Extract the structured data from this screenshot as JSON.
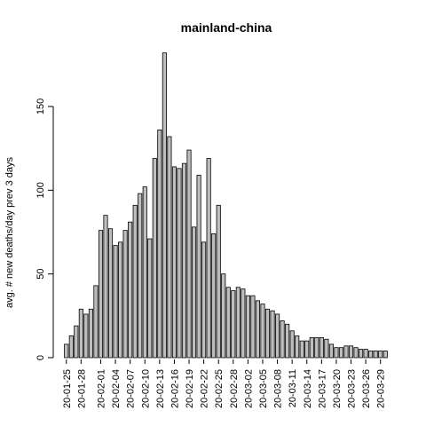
{
  "chart_data": {
    "type": "bar",
    "title": "mainland-china",
    "ylabel": "avg. # new deaths/day prev  3  days",
    "xlabel": "",
    "ylim": [
      0,
      185
    ],
    "yticks": [
      0,
      50,
      100,
      150
    ],
    "bar_color": "#bebebe",
    "bar_stroke": "#000000",
    "grid": false,
    "categories": [
      "20-01-25",
      "20-01-26",
      "20-01-27",
      "20-01-28",
      "20-01-29",
      "20-01-30",
      "20-01-31",
      "20-02-01",
      "20-02-02",
      "20-02-03",
      "20-02-04",
      "20-02-05",
      "20-02-06",
      "20-02-07",
      "20-02-08",
      "20-02-09",
      "20-02-10",
      "20-02-11",
      "20-02-12",
      "20-02-13",
      "20-02-14",
      "20-02-15",
      "20-02-16",
      "20-02-17",
      "20-02-18",
      "20-02-19",
      "20-02-20",
      "20-02-21",
      "20-02-22",
      "20-02-23",
      "20-02-24",
      "20-02-25",
      "20-02-26",
      "20-02-27",
      "20-02-28",
      "20-02-29",
      "20-03-01",
      "20-03-02",
      "20-03-03",
      "20-03-04",
      "20-03-05",
      "20-03-06",
      "20-03-07",
      "20-03-08",
      "20-03-09",
      "20-03-10",
      "20-03-11",
      "20-03-12",
      "20-03-13",
      "20-03-14",
      "20-03-15",
      "20-03-16",
      "20-03-17",
      "20-03-18",
      "20-03-19",
      "20-03-20",
      "20-03-21",
      "20-03-22",
      "20-03-23",
      "20-03-24",
      "20-03-25",
      "20-03-26",
      "20-03-27",
      "20-03-28",
      "20-03-29",
      "20-03-30"
    ],
    "tick_labels": [
      "20-01-25",
      "20-01-28",
      "20-02-01",
      "20-02-04",
      "20-02-07",
      "20-02-10",
      "20-02-13",
      "20-02-16",
      "20-02-19",
      "20-02-22",
      "20-02-25",
      "20-02-28",
      "20-03-02",
      "20-03-05",
      "20-03-08",
      "20-03-11",
      "20-03-14",
      "20-03-17",
      "20-03-20",
      "20-03-23",
      "20-03-26",
      "20-03-29"
    ],
    "values": [
      8,
      13,
      19,
      29,
      26,
      29,
      43,
      76,
      85,
      77,
      67,
      69,
      76,
      81,
      91,
      98,
      102,
      71,
      119,
      136,
      182,
      132,
      114,
      113,
      116,
      124,
      78,
      109,
      69,
      119,
      74,
      91,
      50,
      42,
      40,
      42,
      41,
      37,
      37,
      34,
      32,
      29,
      28,
      26,
      22,
      20,
      16,
      13,
      10,
      10,
      12,
      12,
      12,
      11,
      8,
      6,
      6,
      7,
      7,
      6,
      5,
      5,
      4,
      4,
      4,
      4
    ]
  }
}
